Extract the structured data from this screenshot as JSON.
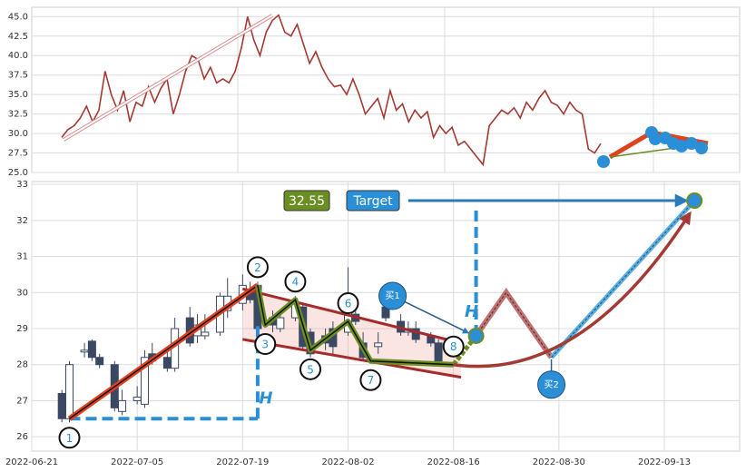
{
  "chart_data": [
    {
      "type": "line",
      "color": "#a33a33",
      "values": [
        29.5,
        30.5,
        31,
        32,
        33.5,
        31.5,
        33,
        38,
        35,
        33,
        35.5,
        31.5,
        34,
        33.5,
        36,
        34,
        35.8,
        37,
        32.5,
        35,
        38,
        40,
        39.5,
        37,
        38.5,
        36.5,
        37,
        36.5,
        38,
        41,
        45,
        42,
        40,
        43,
        44.5,
        45.2,
        43,
        42.5,
        44,
        41.5,
        39,
        40.5,
        38.5,
        37,
        36,
        36.2,
        35,
        37,
        35,
        32.5,
        33.5,
        34.5,
        32,
        35.5,
        33,
        33.8,
        31.5,
        33,
        32,
        32.8,
        29.5,
        31,
        30,
        30.8,
        28.5,
        29,
        28,
        27,
        26,
        31,
        32,
        33,
        32.5,
        33.3,
        32,
        34,
        33,
        34.5,
        35.5,
        34,
        33.6,
        32.5,
        34,
        33,
        32.5,
        28,
        27.5,
        28.7
      ],
      "ylim": [
        25,
        46.2
      ],
      "yticks": [
        {
          "value": 25,
          "label": "25.0"
        },
        {
          "value": 27.5,
          "label": "27.5"
        },
        {
          "value": 30,
          "label": "30.0"
        },
        {
          "value": 32.5,
          "label": "32.5"
        },
        {
          "value": 35,
          "label": "35.0"
        },
        {
          "value": 37.5,
          "label": "37.5"
        },
        {
          "value": 40,
          "label": "40.0"
        },
        {
          "value": 42.5,
          "label": "42.5"
        },
        {
          "value": 45,
          "label": "45.0"
        }
      ],
      "grid": true
    },
    {
      "type": "candlestick",
      "up_color": "#ffffff",
      "down_color": "#3b4863",
      "x": [
        "2022-06-25",
        "2022-06-26",
        "2022-06-28",
        "2022-06-29",
        "2022-06-30",
        "2022-07-02",
        "2022-07-03",
        "2022-07-05",
        "2022-07-06",
        "2022-07-07",
        "2022-07-09",
        "2022-07-10",
        "2022-07-12",
        "2022-07-13",
        "2022-07-14",
        "2022-07-16",
        "2022-07-17",
        "2022-07-19",
        "2022-07-20",
        "2022-07-21",
        "2022-07-23",
        "2022-07-24",
        "2022-07-26",
        "2022-07-27",
        "2022-07-28",
        "2022-07-30",
        "2022-07-31",
        "2022-08-02",
        "2022-08-03",
        "2022-08-04",
        "2022-08-06",
        "2022-08-07",
        "2022-08-09",
        "2022-08-10",
        "2022-08-11",
        "2022-08-13",
        "2022-08-14"
      ],
      "open": [
        27.2,
        26.5,
        28.35,
        28.65,
        28.2,
        28.0,
        26.7,
        27.0,
        26.9,
        28.3,
        28.2,
        27.9,
        29.3,
        28.8,
        28.8,
        28.9,
        29.5,
        29.7,
        30.1,
        30.2,
        29.3,
        29.0,
        29.3,
        29.6,
        28.9,
        28.8,
        29.0,
        28.9,
        29.4,
        28.6,
        28.5,
        29.6,
        29.2,
        28.9,
        29.0,
        28.8,
        28.6
      ],
      "close": [
        26.5,
        28.0,
        28.4,
        28.2,
        28.0,
        26.8,
        27.0,
        27.1,
        28.2,
        28.1,
        27.9,
        29.0,
        28.6,
        29.1,
        28.9,
        29.9,
        29.9,
        30.2,
        29.8,
        29.0,
        29.1,
        29.3,
        29.7,
        28.5,
        28.3,
        28.6,
        28.5,
        29.6,
        29.2,
        28.2,
        28.6,
        29.3,
        28.9,
        29.0,
        28.7,
        28.6,
        28.1
      ],
      "high": [
        27.3,
        28.1,
        28.6,
        28.7,
        28.3,
        28.1,
        27.3,
        27.4,
        28.4,
        28.6,
        28.5,
        29.3,
        29.6,
        29.4,
        29.4,
        30.0,
        30.4,
        30.5,
        30.3,
        30.3,
        29.5,
        29.4,
        29.9,
        29.7,
        29.0,
        29.0,
        29.2,
        30.7,
        29.6,
        28.9,
        28.9,
        29.8,
        29.4,
        29.2,
        29.2,
        28.9,
        28.7
      ],
      "low": [
        26.4,
        26.4,
        28.2,
        28.1,
        27.9,
        26.7,
        26.6,
        26.9,
        26.8,
        28.0,
        27.8,
        27.8,
        28.5,
        28.6,
        28.7,
        28.8,
        29.3,
        29.5,
        29.7,
        28.9,
        28.9,
        28.9,
        29.2,
        28.4,
        28.2,
        28.4,
        28.3,
        28.8,
        29.1,
        28.1,
        28.3,
        29.2,
        28.8,
        28.8,
        28.6,
        28.5,
        28.0
      ],
      "xlim": [
        "2022-06-21",
        "2022-09-23"
      ],
      "xticks": [
        "2022-06-21",
        "2022-07-05",
        "2022-07-19",
        "2022-08-02",
        "2022-08-16",
        "2022-08-30",
        "2022-09-13"
      ],
      "ylim": [
        25.6,
        33.08
      ],
      "yticks": [
        26,
        27,
        28,
        29,
        30,
        31,
        32,
        33
      ],
      "grid": true,
      "pattern": {
        "x": [
          "2022-06-26",
          "2022-07-21",
          "2022-07-22",
          "2022-07-26",
          "2022-07-28",
          "2022-08-02",
          "2022-08-05",
          "2022-08-16"
        ],
        "values": [
          26.5,
          30.2,
          29.1,
          29.8,
          28.4,
          29.2,
          28.1,
          28.0
        ],
        "labels": [
          "1",
          "2",
          "3",
          "4",
          "5",
          "6",
          "7",
          "8"
        ]
      },
      "channel": {
        "x": [
          "2022-07-19",
          "2022-08-17"
        ],
        "upper": [
          30.1,
          28.6
        ],
        "lower": [
          28.7,
          27.65
        ]
      },
      "projection": {
        "x": [
          "2022-08-16",
          "2022-08-19",
          "2022-08-23",
          "2022-08-29",
          "2022-09-17"
        ],
        "values": [
          28.0,
          28.8,
          30.0,
          28.2,
          32.55
        ]
      },
      "buy_labels": [
        "买1",
        "买2"
      ],
      "target_label": "Target",
      "height_label": "H"
    }
  ]
}
